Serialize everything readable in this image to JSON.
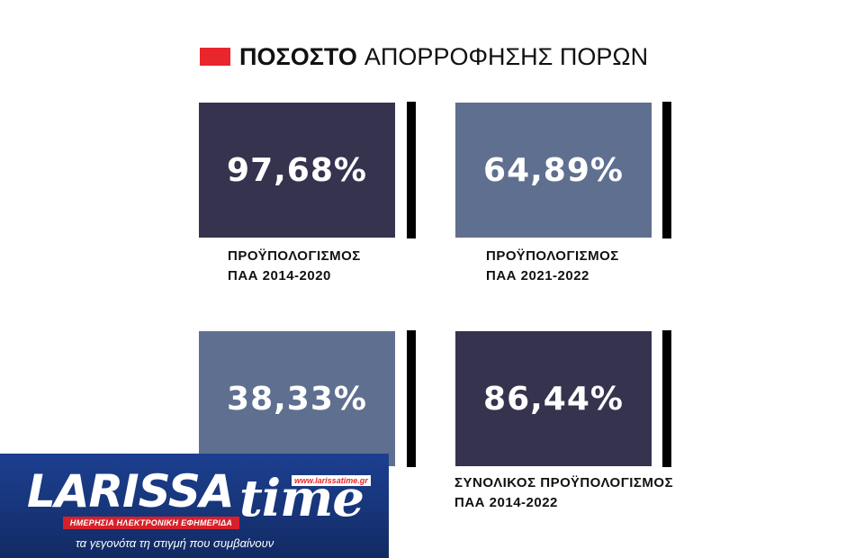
{
  "title": {
    "bold": "ΠΟΣΟΣΤΟ",
    "rest": "ΑΠΟΡΡΟΦΗΣΗΣ ΠΟΡΩΝ"
  },
  "colors": {
    "accent": "#e8262b",
    "dark_tile": "#36334f",
    "light_tile": "#5f6f8f",
    "bar": "#000000"
  },
  "chart_data": {
    "type": "table",
    "title": "ΠΟΣΟΣΤΟ ΑΠΟΡΡΟΦΗΣΗΣ ΠΟΡΩΝ",
    "items": [
      {
        "value": 97.68,
        "value_label": "97,68%",
        "caption": "ΠΡΟΫΠΟΛΟΓΙΣΜΟΣ\nΠΑΑ 2014-2020",
        "tone": "dark"
      },
      {
        "value": 64.89,
        "value_label": "64,89%",
        "caption": "ΠΡΟΫΠΟΛΟΓΙΣΜΟΣ\nΠΑΑ 2021-2022",
        "tone": "light"
      },
      {
        "value": 38.33,
        "value_label": "38,33%",
        "caption": "",
        "tone": "light"
      },
      {
        "value": 86.44,
        "value_label": "86,44%",
        "caption": "ΣΥΝΟΛΙΚΟΣ ΠΡΟΫΠΟΛΟΓΙΣΜΟΣ\nΠΑΑ 2014-2022",
        "tone": "dark"
      }
    ]
  },
  "logo": {
    "word": "LARISSA",
    "word2": "time",
    "url": "www.larissatime.gr",
    "tagline": "ΗΜΕΡΗΣΙΑ ΗΛΕΚΤΡΟΝΙΚΗ ΕΦΗΜΕΡΙΔΑ",
    "slogan": "τα γεγονότα τη στιγμή που συμβαίνουν"
  }
}
